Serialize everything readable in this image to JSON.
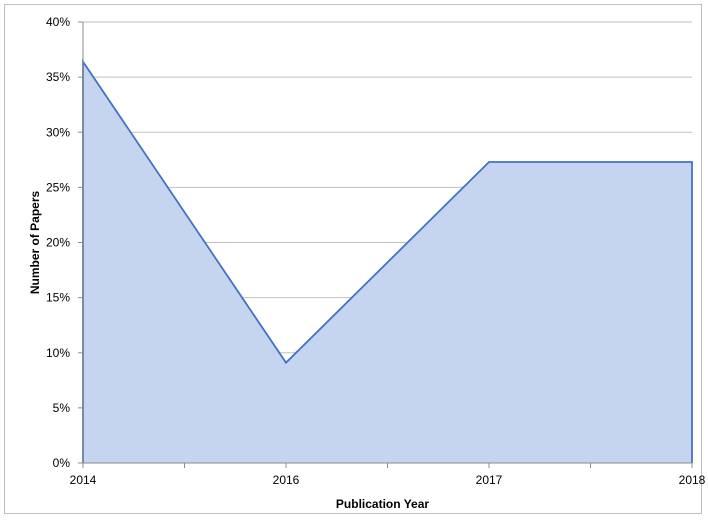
{
  "chart_data": {
    "type": "area",
    "x": [
      "2014",
      "2016",
      "2017",
      "2018"
    ],
    "series": [
      {
        "values": [
          36.4,
          9.1,
          27.3,
          27.3
        ]
      }
    ],
    "xlabel": "Publication Year",
    "ylabel": "Number of Papers",
    "ylim": [
      0,
      40
    ],
    "y_tick_labels": [
      "0%",
      "5%",
      "10%",
      "15%",
      "20%",
      "25%",
      "30%",
      "35%",
      "40%"
    ],
    "grid": true,
    "legend": "none",
    "colors": {
      "fill": "#c5d4ef",
      "line": "#4472c4",
      "grid": "#bfbfbf"
    }
  }
}
